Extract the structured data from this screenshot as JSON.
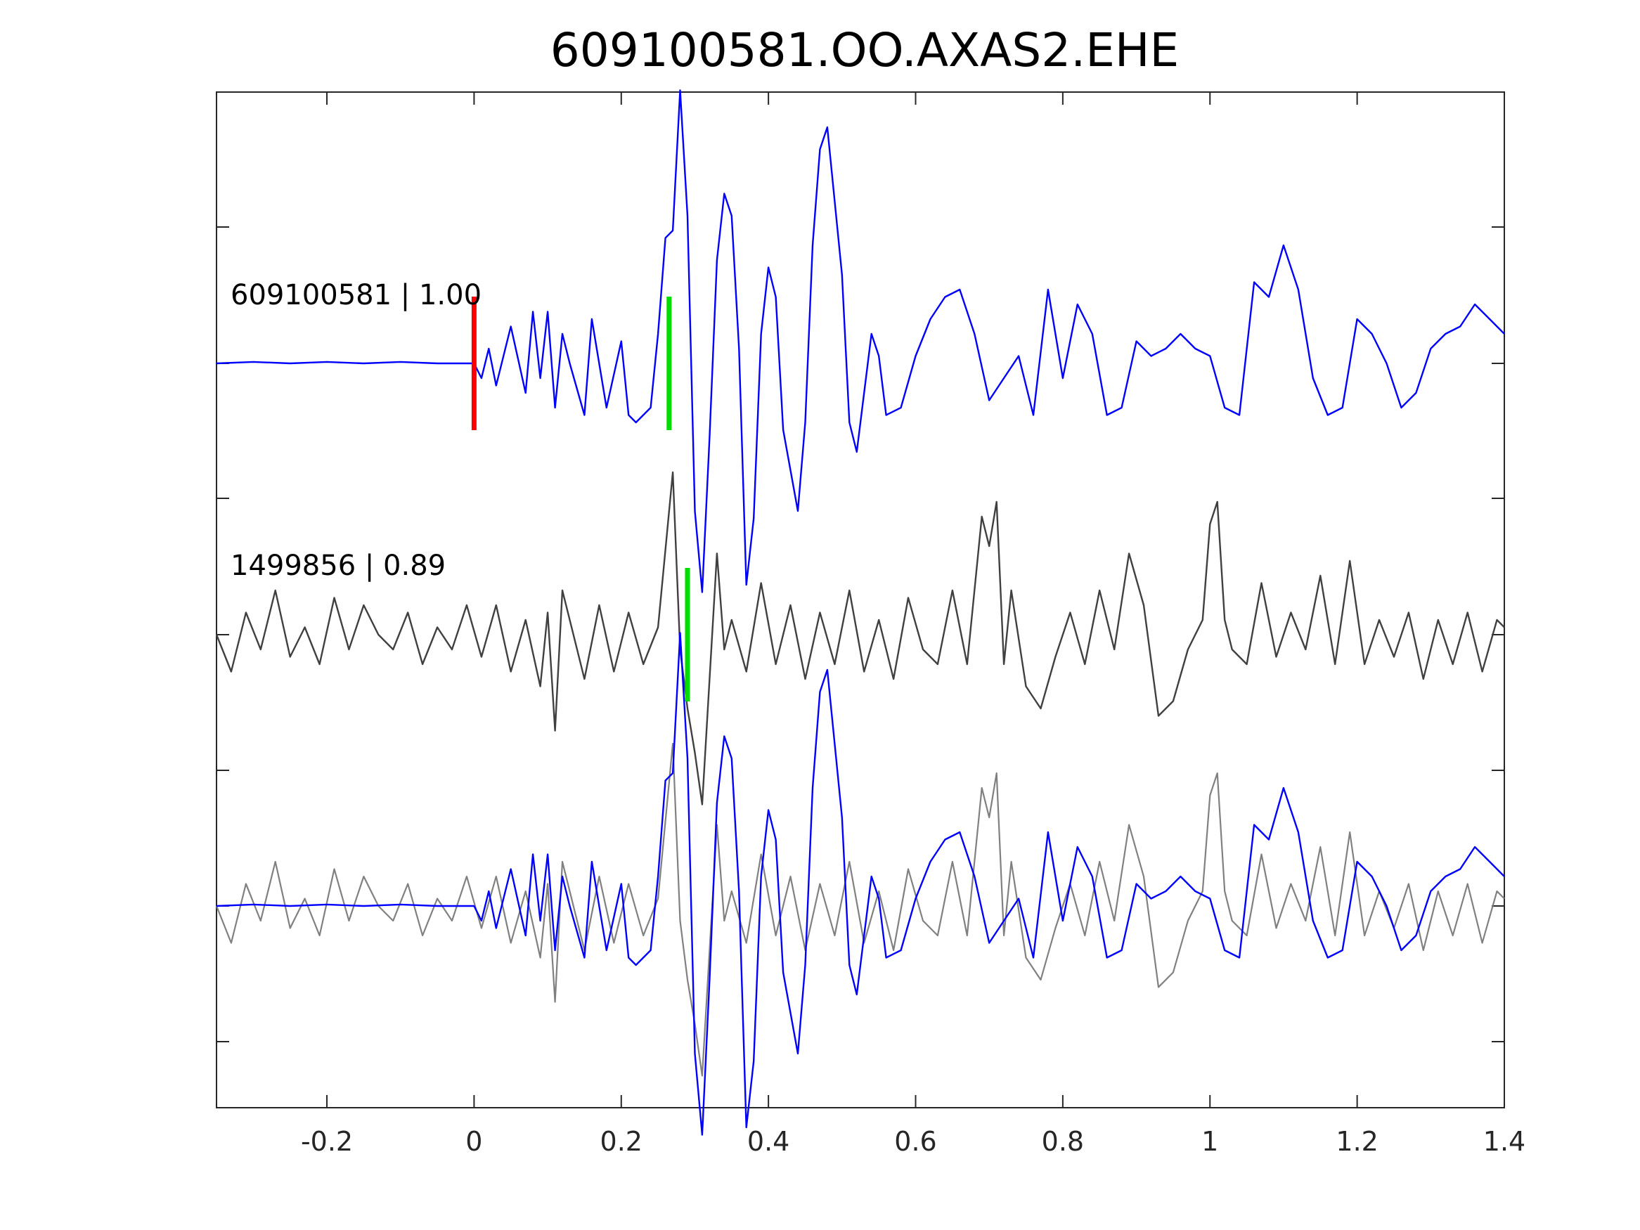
{
  "chart_data": {
    "type": "line",
    "title": "609100581.OO.AXAS2.EHE",
    "xlabel": "",
    "ylabel": "",
    "xlim": [
      -0.35,
      1.4
    ],
    "x_ticks": [
      "-0.2",
      "0",
      "0.2",
      "0.4",
      "0.6",
      "0.8",
      "1",
      "1.2",
      "1.4"
    ],
    "x_tick_values": [
      -0.2,
      0,
      0.2,
      0.4,
      0.6,
      0.8,
      1.0,
      1.2,
      1.4
    ],
    "y_ticks_labeled": false,
    "grid": false,
    "traces": [
      {
        "label": "609100581 | 1.00",
        "color": "#0000ff",
        "offset_row": 0
      },
      {
        "label": "1499856 | 0.89",
        "color": "#404040",
        "offset_row": 1
      },
      {
        "label": "",
        "overlay": [
          "#808080",
          "#0000ff"
        ],
        "offset_row": 2
      }
    ],
    "picks": [
      {
        "trace": 0,
        "time": 0.0,
        "color": "#ff0000"
      },
      {
        "trace": 0,
        "time": 0.265,
        "color": "#00dd00"
      },
      {
        "trace": 1,
        "time": 0.29,
        "color": "#00dd00"
      }
    ],
    "series": [
      {
        "role": "template",
        "color": "#0000ff",
        "x": [
          -0.35,
          -0.3,
          -0.25,
          -0.2,
          -0.15,
          -0.1,
          -0.05,
          0.0,
          0.01,
          0.02,
          0.03,
          0.05,
          0.07,
          0.08,
          0.09,
          0.1,
          0.11,
          0.12,
          0.13,
          0.15,
          0.16,
          0.18,
          0.2,
          0.21,
          0.22,
          0.24,
          0.25,
          0.26,
          0.27,
          0.28,
          0.29,
          0.3,
          0.31,
          0.32,
          0.33,
          0.34,
          0.35,
          0.36,
          0.37,
          0.38,
          0.39,
          0.4,
          0.41,
          0.42,
          0.44,
          0.45,
          0.46,
          0.47,
          0.48,
          0.5,
          0.51,
          0.52,
          0.54,
          0.55,
          0.56,
          0.58,
          0.6,
          0.62,
          0.64,
          0.66,
          0.68,
          0.7,
          0.72,
          0.74,
          0.76,
          0.78,
          0.8,
          0.82,
          0.84,
          0.86,
          0.88,
          0.9,
          0.92,
          0.94,
          0.96,
          0.98,
          1.0,
          1.02,
          1.04,
          1.06,
          1.08,
          1.1,
          1.12,
          1.14,
          1.16,
          1.18,
          1.2,
          1.22,
          1.24,
          1.26,
          1.28,
          1.3,
          1.32,
          1.34,
          1.36,
          1.38,
          1.4
        ],
        "y": [
          0,
          0.01,
          0,
          0.01,
          0,
          0.01,
          0,
          0,
          -0.1,
          0.1,
          -0.15,
          0.25,
          -0.2,
          0.35,
          -0.1,
          0.35,
          -0.3,
          0.2,
          0.0,
          -0.35,
          0.3,
          -0.3,
          0.15,
          -0.35,
          -0.4,
          -0.3,
          0.2,
          0.85,
          0.9,
          1.85,
          1.0,
          -1.0,
          -1.55,
          -0.5,
          0.7,
          1.15,
          1.0,
          0.1,
          -1.5,
          -1.05,
          0.2,
          0.65,
          0.45,
          -0.45,
          -1.0,
          -0.4,
          0.8,
          1.45,
          1.6,
          0.6,
          -0.4,
          -0.6,
          0.2,
          0.05,
          -0.35,
          -0.3,
          0.05,
          0.3,
          0.45,
          0.5,
          0.2,
          -0.25,
          -0.1,
          0.05,
          -0.35,
          0.5,
          -0.1,
          0.4,
          0.2,
          -0.35,
          -0.3,
          0.15,
          0.05,
          0.1,
          0.2,
          0.1,
          0.05,
          -0.3,
          -0.35,
          0.55,
          0.45,
          0.8,
          0.5,
          -0.1,
          -0.35,
          -0.3,
          0.3,
          0.2,
          0.0,
          -0.3,
          -0.2,
          0.1,
          0.2,
          0.25,
          0.4,
          0.3,
          0.2
        ]
      },
      {
        "role": "detection",
        "color": "#404040",
        "x": [
          -0.35,
          -0.33,
          -0.31,
          -0.29,
          -0.27,
          -0.25,
          -0.23,
          -0.21,
          -0.19,
          -0.17,
          -0.15,
          -0.13,
          -0.11,
          -0.09,
          -0.07,
          -0.05,
          -0.03,
          -0.01,
          0.01,
          0.03,
          0.05,
          0.07,
          0.09,
          0.1,
          0.11,
          0.12,
          0.13,
          0.15,
          0.17,
          0.19,
          0.21,
          0.23,
          0.25,
          0.27,
          0.28,
          0.29,
          0.3,
          0.31,
          0.32,
          0.33,
          0.34,
          0.35,
          0.37,
          0.39,
          0.41,
          0.43,
          0.45,
          0.47,
          0.49,
          0.51,
          0.53,
          0.55,
          0.57,
          0.59,
          0.61,
          0.63,
          0.65,
          0.67,
          0.69,
          0.7,
          0.71,
          0.72,
          0.73,
          0.75,
          0.77,
          0.79,
          0.81,
          0.83,
          0.85,
          0.87,
          0.89,
          0.91,
          0.93,
          0.95,
          0.97,
          0.99,
          1.0,
          1.01,
          1.02,
          1.03,
          1.05,
          1.07,
          1.09,
          1.11,
          1.13,
          1.15,
          1.17,
          1.19,
          1.21,
          1.23,
          1.25,
          1.27,
          1.29,
          1.31,
          1.33,
          1.35,
          1.37,
          1.39,
          1.4
        ],
        "y": [
          0.0,
          -0.25,
          0.15,
          -0.1,
          0.3,
          -0.15,
          0.05,
          -0.2,
          0.25,
          -0.1,
          0.2,
          0.0,
          -0.1,
          0.15,
          -0.2,
          0.05,
          -0.1,
          0.2,
          -0.15,
          0.2,
          -0.25,
          0.1,
          -0.35,
          0.15,
          -0.65,
          0.3,
          0.1,
          -0.3,
          0.2,
          -0.25,
          0.15,
          -0.2,
          0.05,
          1.1,
          -0.1,
          -0.5,
          -0.8,
          -1.15,
          -0.3,
          0.55,
          -0.1,
          0.1,
          -0.25,
          0.35,
          -0.2,
          0.2,
          -0.3,
          0.15,
          -0.2,
          0.3,
          -0.25,
          0.1,
          -0.3,
          0.25,
          -0.1,
          -0.2,
          0.3,
          -0.2,
          0.8,
          0.6,
          0.9,
          -0.2,
          0.3,
          -0.35,
          -0.5,
          -0.15,
          0.15,
          -0.2,
          0.3,
          -0.1,
          0.55,
          0.2,
          -0.55,
          -0.45,
          -0.1,
          0.1,
          0.75,
          0.9,
          0.1,
          -0.1,
          -0.2,
          0.35,
          -0.15,
          0.15,
          -0.1,
          0.4,
          -0.2,
          0.5,
          -0.2,
          0.1,
          -0.15,
          0.15,
          -0.3,
          0.1,
          -0.2,
          0.15,
          -0.25,
          0.1,
          0.05
        ]
      }
    ]
  }
}
